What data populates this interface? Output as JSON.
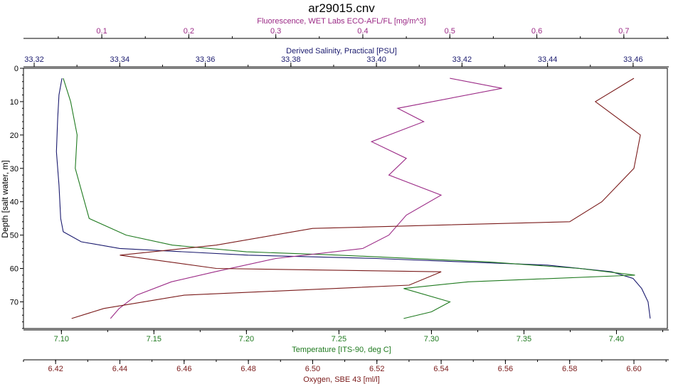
{
  "chart_data": {
    "type": "line",
    "title": "ar29015.cnv",
    "y_axis": {
      "label": "Depth [salt water, m]",
      "range": [
        0,
        78
      ],
      "ticks": [
        0,
        10,
        20,
        30,
        40,
        50,
        60,
        70
      ],
      "inverted": true
    },
    "top_axes": [
      {
        "key": "fluorescence",
        "label": "Fluorescence, WET Labs ECO-AFL/FL [mg/m^3]",
        "range": [
          0.01,
          0.75
        ],
        "ticks": [
          0.1,
          0.2,
          0.3,
          0.4,
          0.5,
          0.6,
          0.7
        ],
        "tick_labels": [
          "0.1",
          "0.2",
          "0.3",
          "0.4",
          "0.5",
          "0.6",
          "0.7"
        ],
        "color": "#9b2a86"
      },
      {
        "key": "salinity",
        "label": "Derived Salinity, Practical [PSU]",
        "range": [
          33.3175,
          33.468
        ],
        "ticks": [
          33.32,
          33.34,
          33.36,
          33.38,
          33.4,
          33.42,
          33.44,
          33.46
        ],
        "tick_labels": [
          "33.32",
          "33.34",
          "33.36",
          "33.38",
          "33.40",
          "33.42",
          "33.44",
          "33.46"
        ],
        "color": "#1a1a6e"
      }
    ],
    "bottom_axes": [
      {
        "key": "temperature",
        "label": "Temperature [ITS-90, deg C]",
        "range": [
          7.0795,
          7.4275
        ],
        "ticks": [
          7.1,
          7.15,
          7.2,
          7.25,
          7.3,
          7.35,
          7.4
        ],
        "tick_labels": [
          "7.10",
          "7.15",
          "7.20",
          "7.25",
          "7.30",
          "7.35",
          "7.40"
        ],
        "color": "#1f7a1f"
      },
      {
        "key": "oxygen",
        "label": "Oxygen, SBE 43 [ml/l]",
        "range": [
          6.41,
          6.6104
        ],
        "ticks": [
          6.42,
          6.44,
          6.46,
          6.48,
          6.5,
          6.52,
          6.54,
          6.56,
          6.58,
          6.6
        ],
        "tick_labels": [
          "6.42",
          "6.44",
          "6.46",
          "6.48",
          "6.50",
          "6.52",
          "6.54",
          "6.56",
          "6.58",
          "6.60"
        ],
        "color": "#7a1a1a"
      }
    ],
    "grid": false,
    "series": [
      {
        "axis": "salinity",
        "color": "#1a1a6e",
        "points": [
          [
            33.3265,
            3
          ],
          [
            33.3258,
            8
          ],
          [
            33.3255,
            15
          ],
          [
            33.3252,
            25
          ],
          [
            33.3258,
            35
          ],
          [
            33.3262,
            45
          ],
          [
            33.3268,
            49
          ],
          [
            33.331,
            52
          ],
          [
            33.34,
            54
          ],
          [
            33.37,
            56
          ],
          [
            33.4,
            57
          ],
          [
            33.42,
            58
          ],
          [
            33.44,
            59
          ],
          [
            33.455,
            61
          ],
          [
            33.46,
            63
          ],
          [
            33.462,
            66
          ],
          [
            33.4635,
            70
          ],
          [
            33.464,
            75
          ]
        ]
      },
      {
        "axis": "temperature",
        "color": "#1f7a1f",
        "points": [
          [
            7.101,
            3
          ],
          [
            7.105,
            10
          ],
          [
            7.1085,
            20
          ],
          [
            7.1075,
            30
          ],
          [
            7.115,
            45
          ],
          [
            7.135,
            50
          ],
          [
            7.16,
            53
          ],
          [
            7.2,
            55
          ],
          [
            7.25,
            56
          ],
          [
            7.33,
            58
          ],
          [
            7.38,
            60
          ],
          [
            7.41,
            62
          ],
          [
            7.32,
            64
          ],
          [
            7.285,
            66
          ],
          [
            7.31,
            70
          ],
          [
            7.3,
            73
          ],
          [
            7.285,
            75
          ]
        ]
      },
      {
        "axis": "fluorescence",
        "color": "#9b2a86",
        "points": [
          [
            0.5,
            3
          ],
          [
            0.56,
            6
          ],
          [
            0.44,
            12
          ],
          [
            0.47,
            16
          ],
          [
            0.41,
            22
          ],
          [
            0.45,
            27
          ],
          [
            0.43,
            32
          ],
          [
            0.49,
            38
          ],
          [
            0.45,
            44
          ],
          [
            0.43,
            50
          ],
          [
            0.4,
            54
          ],
          [
            0.3,
            57
          ],
          [
            0.23,
            61
          ],
          [
            0.18,
            64
          ],
          [
            0.14,
            68
          ],
          [
            0.12,
            72
          ],
          [
            0.11,
            75
          ]
        ]
      },
      {
        "axis": "oxygen",
        "color": "#7a1a1a",
        "points": [
          [
            6.6,
            3
          ],
          [
            6.588,
            10
          ],
          [
            6.602,
            20
          ],
          [
            6.6,
            30
          ],
          [
            6.59,
            40
          ],
          [
            6.58,
            46
          ],
          [
            6.5,
            48
          ],
          [
            6.47,
            53
          ],
          [
            6.44,
            56
          ],
          [
            6.47,
            60
          ],
          [
            6.54,
            61
          ],
          [
            6.53,
            65
          ],
          [
            6.46,
            68
          ],
          [
            6.435,
            72
          ],
          [
            6.425,
            75
          ]
        ]
      }
    ]
  }
}
